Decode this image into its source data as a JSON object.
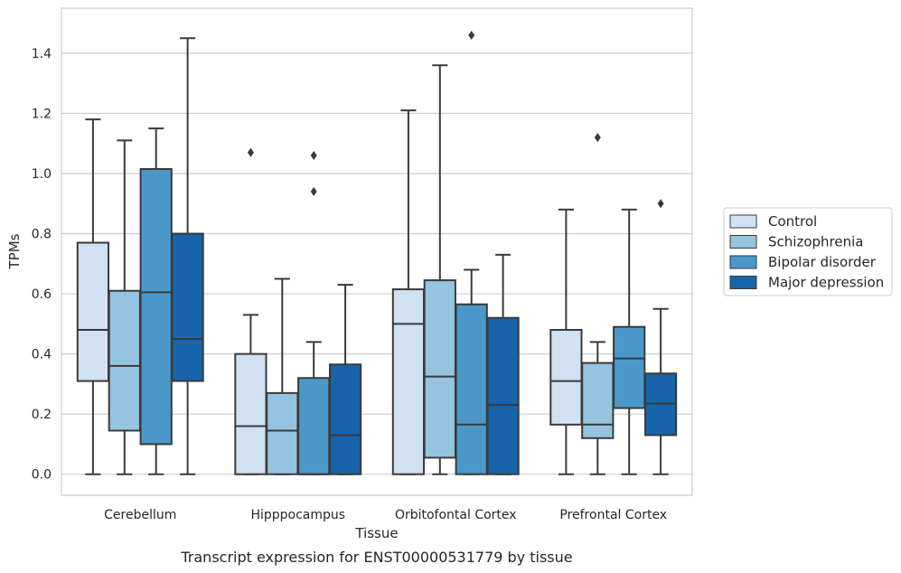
{
  "chart_data": {
    "type": "box",
    "caption": "Transcript expression for ENST00000531779 by tissue",
    "xlabel": "Tissue",
    "ylabel": "TPMs",
    "ylim": [
      -0.07,
      1.55
    ],
    "yticks": [
      "0.0",
      "0.2",
      "0.4",
      "0.6",
      "0.8",
      "1.0",
      "1.2",
      "1.4"
    ],
    "ytick_values": [
      0.0,
      0.2,
      0.4,
      0.6,
      0.8,
      1.0,
      1.2,
      1.4
    ],
    "grid": true,
    "legend_position": "right",
    "categories": [
      "Cerebellum",
      "Hipppocampus",
      "Orbitofontal Cortex",
      "Prefrontal Cortex"
    ],
    "series": [
      {
        "name": "Control",
        "color": "#d0e1f2",
        "boxes": [
          {
            "min": 0.0,
            "q1": 0.31,
            "median": 0.48,
            "q3": 0.77,
            "max": 1.18,
            "outliers": []
          },
          {
            "min": 0.0,
            "q1": 0.0,
            "median": 0.16,
            "q3": 0.4,
            "max": 0.53,
            "outliers": [
              1.07
            ]
          },
          {
            "min": 0.0,
            "q1": 0.0,
            "median": 0.5,
            "q3": 0.615,
            "max": 1.21,
            "outliers": []
          },
          {
            "min": 0.0,
            "q1": 0.165,
            "median": 0.31,
            "q3": 0.48,
            "max": 0.88,
            "outliers": []
          }
        ]
      },
      {
        "name": "Schizophrenia",
        "color": "#94c4df",
        "boxes": [
          {
            "min": 0.0,
            "q1": 0.145,
            "median": 0.36,
            "q3": 0.61,
            "max": 1.11,
            "outliers": []
          },
          {
            "min": 0.0,
            "q1": 0.0,
            "median": 0.145,
            "q3": 0.27,
            "max": 0.65,
            "outliers": []
          },
          {
            "min": 0.0,
            "q1": 0.055,
            "median": 0.325,
            "q3": 0.645,
            "max": 1.36,
            "outliers": []
          },
          {
            "min": 0.0,
            "q1": 0.12,
            "median": 0.165,
            "q3": 0.37,
            "max": 0.44,
            "outliers": [
              1.12
            ]
          }
        ]
      },
      {
        "name": "Bipolar disorder",
        "color": "#4a98c9",
        "boxes": [
          {
            "min": 0.0,
            "q1": 0.1,
            "median": 0.605,
            "q3": 1.015,
            "max": 1.15,
            "outliers": []
          },
          {
            "min": 0.0,
            "q1": 0.0,
            "median": 0.0,
            "q3": 0.32,
            "max": 0.44,
            "outliers": [
              0.94,
              1.06
            ]
          },
          {
            "min": 0.0,
            "q1": 0.0,
            "median": 0.165,
            "q3": 0.565,
            "max": 0.68,
            "outliers": [
              1.46
            ]
          },
          {
            "min": 0.0,
            "q1": 0.22,
            "median": 0.385,
            "q3": 0.49,
            "max": 0.88,
            "outliers": []
          }
        ]
      },
      {
        "name": "Major depression",
        "color": "#1764ab",
        "boxes": [
          {
            "min": 0.0,
            "q1": 0.31,
            "median": 0.45,
            "q3": 0.8,
            "max": 1.45,
            "outliers": []
          },
          {
            "min": 0.0,
            "q1": 0.0,
            "median": 0.13,
            "q3": 0.365,
            "max": 0.63,
            "outliers": []
          },
          {
            "min": 0.0,
            "q1": 0.0,
            "median": 0.23,
            "q3": 0.52,
            "max": 0.73,
            "outliers": []
          },
          {
            "min": 0.0,
            "q1": 0.13,
            "median": 0.235,
            "q3": 0.335,
            "max": 0.55,
            "outliers": [
              0.9
            ]
          }
        ]
      }
    ]
  }
}
